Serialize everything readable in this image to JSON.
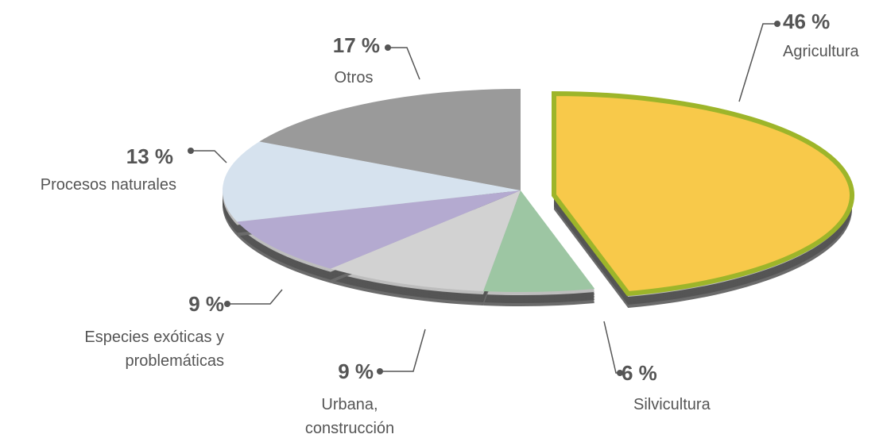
{
  "chart_data": {
    "type": "pie",
    "categories": [
      "Agricultura",
      "Silvicultura",
      "Urbana,\nconstrucción",
      "Especies exóticas y\nproblemáticas",
      "Procesos naturales",
      "Otros"
    ],
    "values": [
      46,
      6,
      9,
      9,
      13,
      17
    ],
    "value_labels": [
      "46 %",
      "6 %",
      "9 %",
      "9 %",
      "13 %",
      "17 %"
    ],
    "colors": [
      "#f8c94a",
      "#9dc6a3",
      "#d2d2d2",
      "#b4aad0",
      "#d6e2ee",
      "#9a9a9a"
    ]
  }
}
